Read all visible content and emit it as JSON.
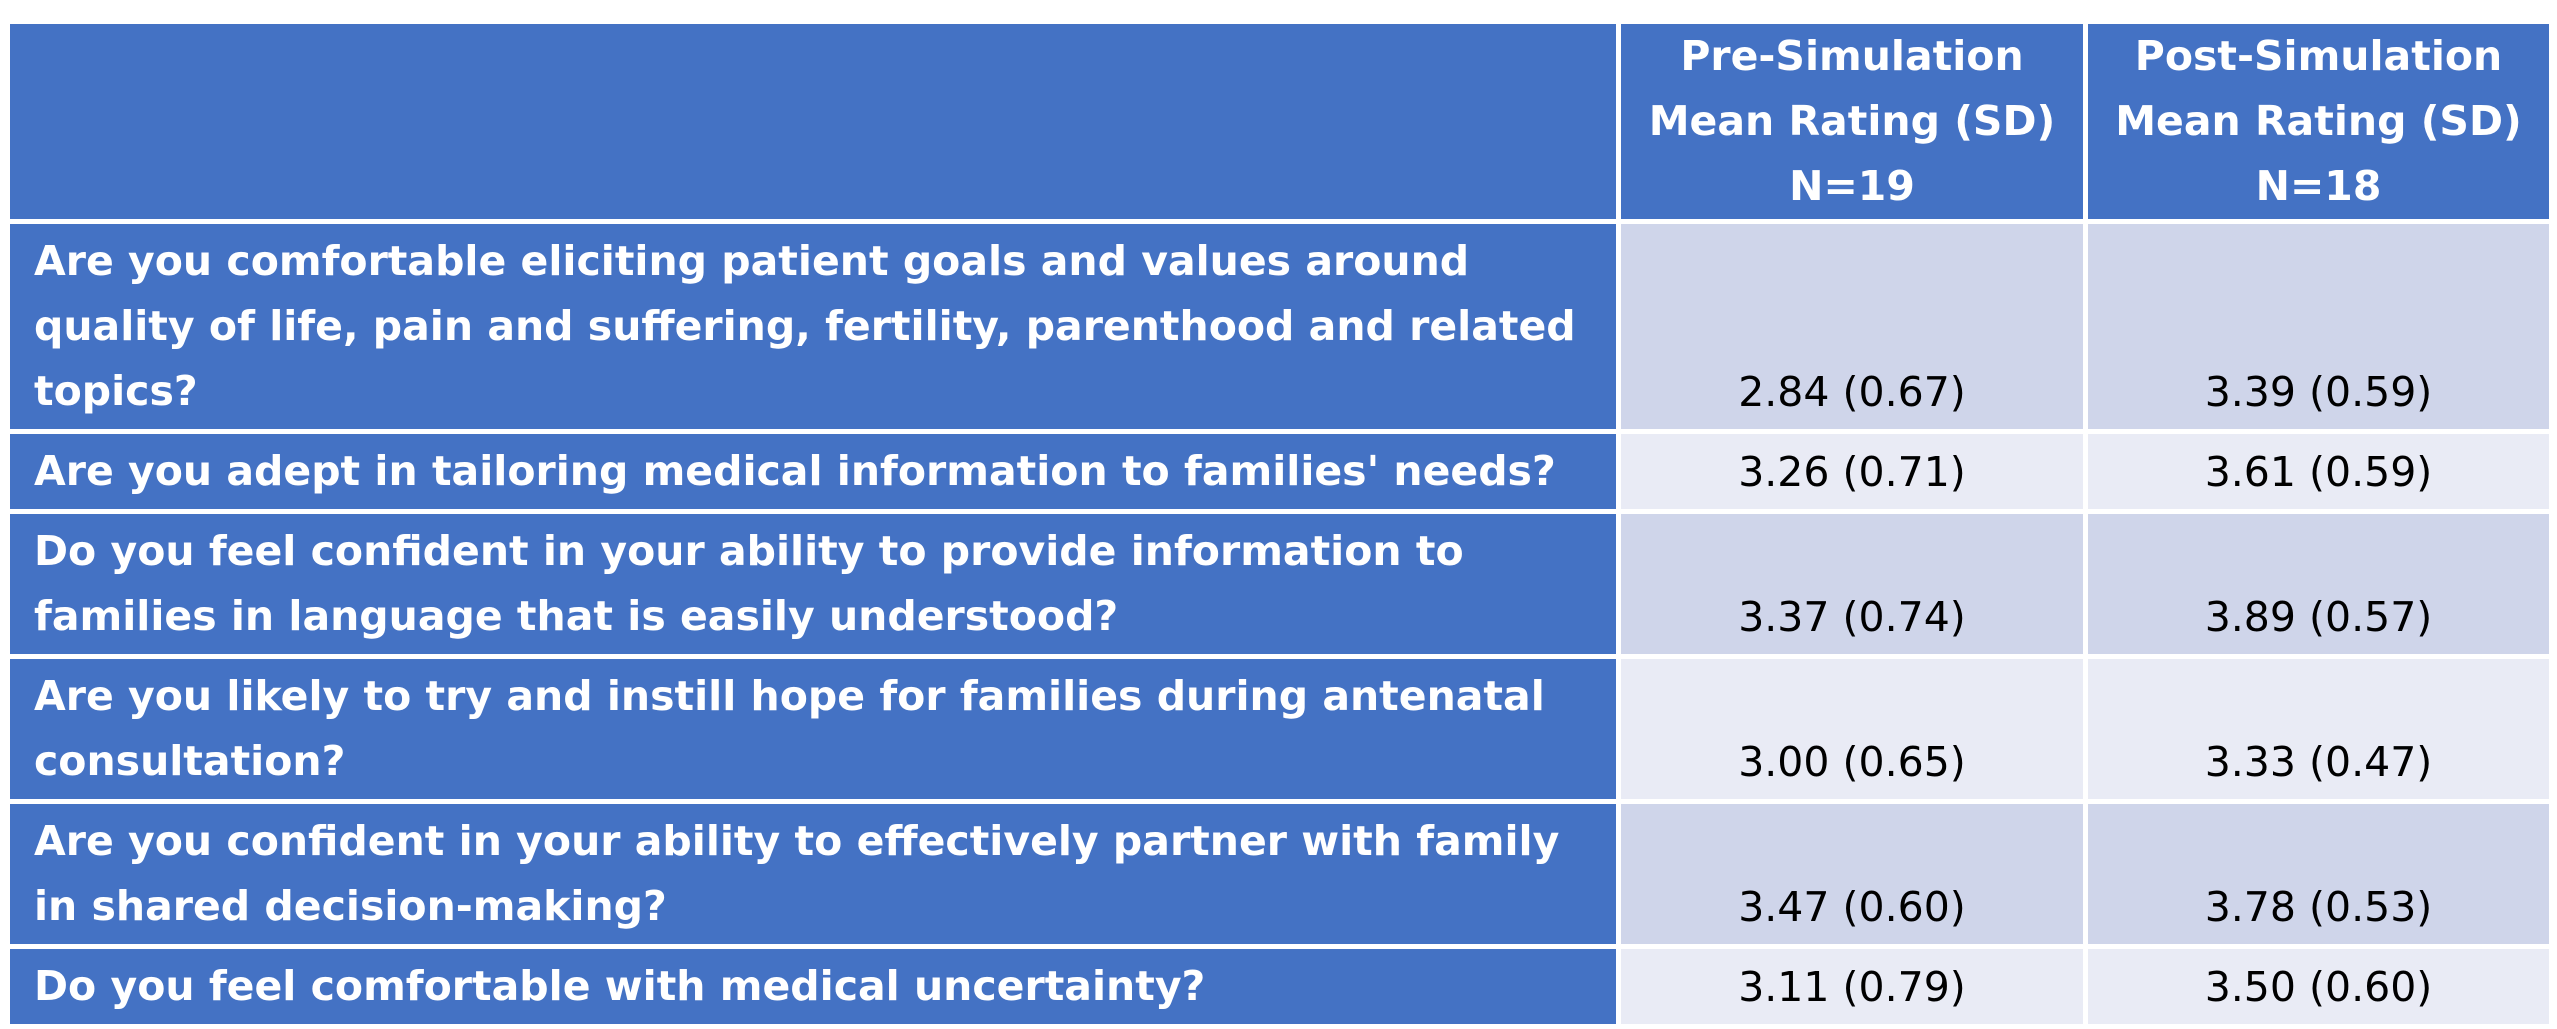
{
  "table": {
    "headers": [
      {
        "lines": [
          "",
          "",
          ""
        ]
      },
      {
        "lines": [
          "Pre-Simulation",
          "Mean Rating (SD)",
          "N=19"
        ]
      },
      {
        "lines": [
          "Post-Simulation",
          "Mean Rating (SD)",
          "N=18"
        ]
      }
    ],
    "rows": [
      {
        "question": "Are you comfortable eliciting patient goals and values around quality of life, pain and suffering, fertility, parenthood and related topics?",
        "pre": "2.84 (0.67)",
        "post": "3.39 (0.59)"
      },
      {
        "question": "Are you adept in tailoring medical information to families' needs?",
        "pre": "3.26 (0.71)",
        "post": "3.61 (0.59)"
      },
      {
        "question": "Do you feel confident in your ability to provide information to families in language that is easily understood?",
        "pre": "3.37 (0.74)",
        "post": "3.89 (0.57)"
      },
      {
        "question": "Are you likely to try and instill hope for families during antenatal consultation?",
        "pre": "3.00 (0.65)",
        "post": "3.33 (0.47)"
      },
      {
        "question": "Are you confident in your ability to effectively partner with family in shared decision-making?",
        "pre": "3.47 (0.60)",
        "post": "3.78 (0.53)"
      },
      {
        "question": "Do you feel comfortable with medical uncertainty?",
        "pre": "3.11 (0.79)",
        "post": "3.50 (0.60)"
      }
    ]
  },
  "colors": {
    "header_bg": "#4472c4",
    "row_odd_bg": "#cfd5ea",
    "row_even_bg": "#e9ebf5",
    "header_text": "#ffffff",
    "value_text": "#000000"
  }
}
